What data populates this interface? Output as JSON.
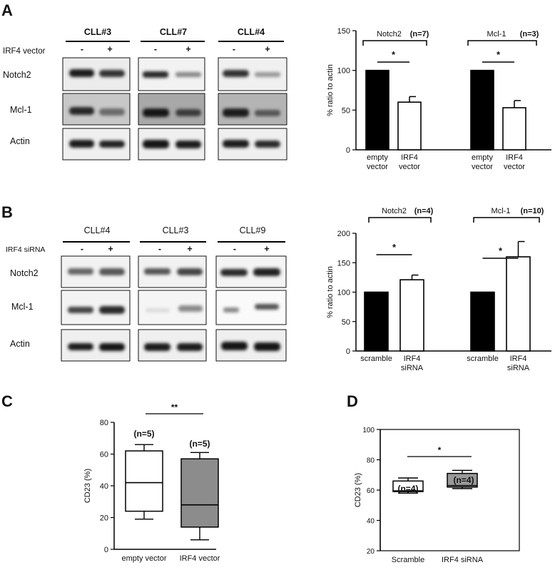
{
  "panels": {
    "A": {
      "label": "A",
      "blot": {
        "condition": "IRF4 vector",
        "samples": [
          "CLL#3",
          "CLL#7",
          "CLL#4"
        ],
        "lane_signs": [
          "-",
          "+"
        ],
        "rows": [
          "Notch2",
          "Mcl-1",
          "Actin"
        ]
      }
    },
    "B": {
      "label": "B",
      "blot": {
        "condition": "IRF4 siRNA",
        "samples": [
          "CLL#4",
          "CLL#3",
          "CLL#9"
        ],
        "lane_signs": [
          "-",
          "+"
        ],
        "rows": [
          "Notch2",
          "Mcl-1",
          "Actin"
        ]
      }
    },
    "C": {
      "label": "C"
    },
    "D": {
      "label": "D"
    }
  },
  "chart_data": [
    {
      "id": "A-bar",
      "type": "bar",
      "ylabel": "% ratio to actin",
      "ylim": [
        0,
        150
      ],
      "yticks": [
        0,
        50,
        100,
        150
      ],
      "groups": [
        {
          "title": "Notch2",
          "n": "(n=7)",
          "sig": "*",
          "bars": [
            {
              "label": [
                "empty",
                "vector"
              ],
              "value": 100,
              "err": 0,
              "fill": "#000000"
            },
            {
              "label": [
                "IRF4",
                "vector"
              ],
              "value": 60,
              "err": 7,
              "fill": "#ffffff"
            }
          ]
        },
        {
          "title": "Mcl-1",
          "n": "(n=3)",
          "sig": "*",
          "bars": [
            {
              "label": [
                "empty",
                "vector"
              ],
              "value": 100,
              "err": 0,
              "fill": "#000000"
            },
            {
              "label": [
                "IRF4",
                "vector"
              ],
              "value": 53,
              "err": 9,
              "fill": "#ffffff"
            }
          ]
        }
      ]
    },
    {
      "id": "B-bar",
      "type": "bar",
      "ylabel": "% ratio to actin",
      "ylim": [
        0,
        200
      ],
      "yticks": [
        0,
        50,
        100,
        150,
        200
      ],
      "groups": [
        {
          "title": "Notch2",
          "n": "(n=4)",
          "sig": "*",
          "bars": [
            {
              "label": [
                "scramble"
              ],
              "value": 100,
              "err": 0,
              "fill": "#000000"
            },
            {
              "label": [
                "IRF4",
                "siRNA"
              ],
              "value": 121,
              "err": 8,
              "fill": "#ffffff"
            }
          ]
        },
        {
          "title": "Mcl-1",
          "n": "(n=10)",
          "sig": "*",
          "bars": [
            {
              "label": [
                "scramble"
              ],
              "value": 100,
              "err": 0,
              "fill": "#000000"
            },
            {
              "label": [
                "IRF4",
                "siRNA"
              ],
              "value": 160,
              "err": 26,
              "fill": "#ffffff"
            }
          ]
        }
      ]
    },
    {
      "id": "C-box",
      "type": "box",
      "ylabel": "CD23 (%)",
      "ylim": [
        0,
        80
      ],
      "yticks": [
        0,
        20,
        40,
        60,
        80
      ],
      "sig": "**",
      "boxes": [
        {
          "label": "empty vector",
          "n": "(n=5)",
          "min": 19,
          "q1": 24,
          "median": 42,
          "q3": 62,
          "max": 66,
          "fill": "#ffffff"
        },
        {
          "label": "IRF4  vector",
          "n": "(n=5)",
          "min": 6,
          "q1": 14,
          "median": 28,
          "q3": 57,
          "max": 61,
          "fill": "#8c8c8c"
        }
      ]
    },
    {
      "id": "D-box",
      "type": "box",
      "ylabel": "CD23 (%)",
      "ylim": [
        20,
        100
      ],
      "yticks": [
        20,
        40,
        60,
        80,
        100
      ],
      "sig": "*",
      "boxes": [
        {
          "label": "Scramble",
          "n": "(n=4)",
          "min": 58,
          "q1": 59,
          "median": 59.5,
          "q3": 66,
          "max": 68,
          "fill": "#ffffff"
        },
        {
          "label": "IRF4 siRNA",
          "n": "(n=4)",
          "min": 61,
          "q1": 62,
          "median": 63,
          "q3": 71,
          "max": 73,
          "fill": "#9a9a9a"
        }
      ]
    }
  ]
}
